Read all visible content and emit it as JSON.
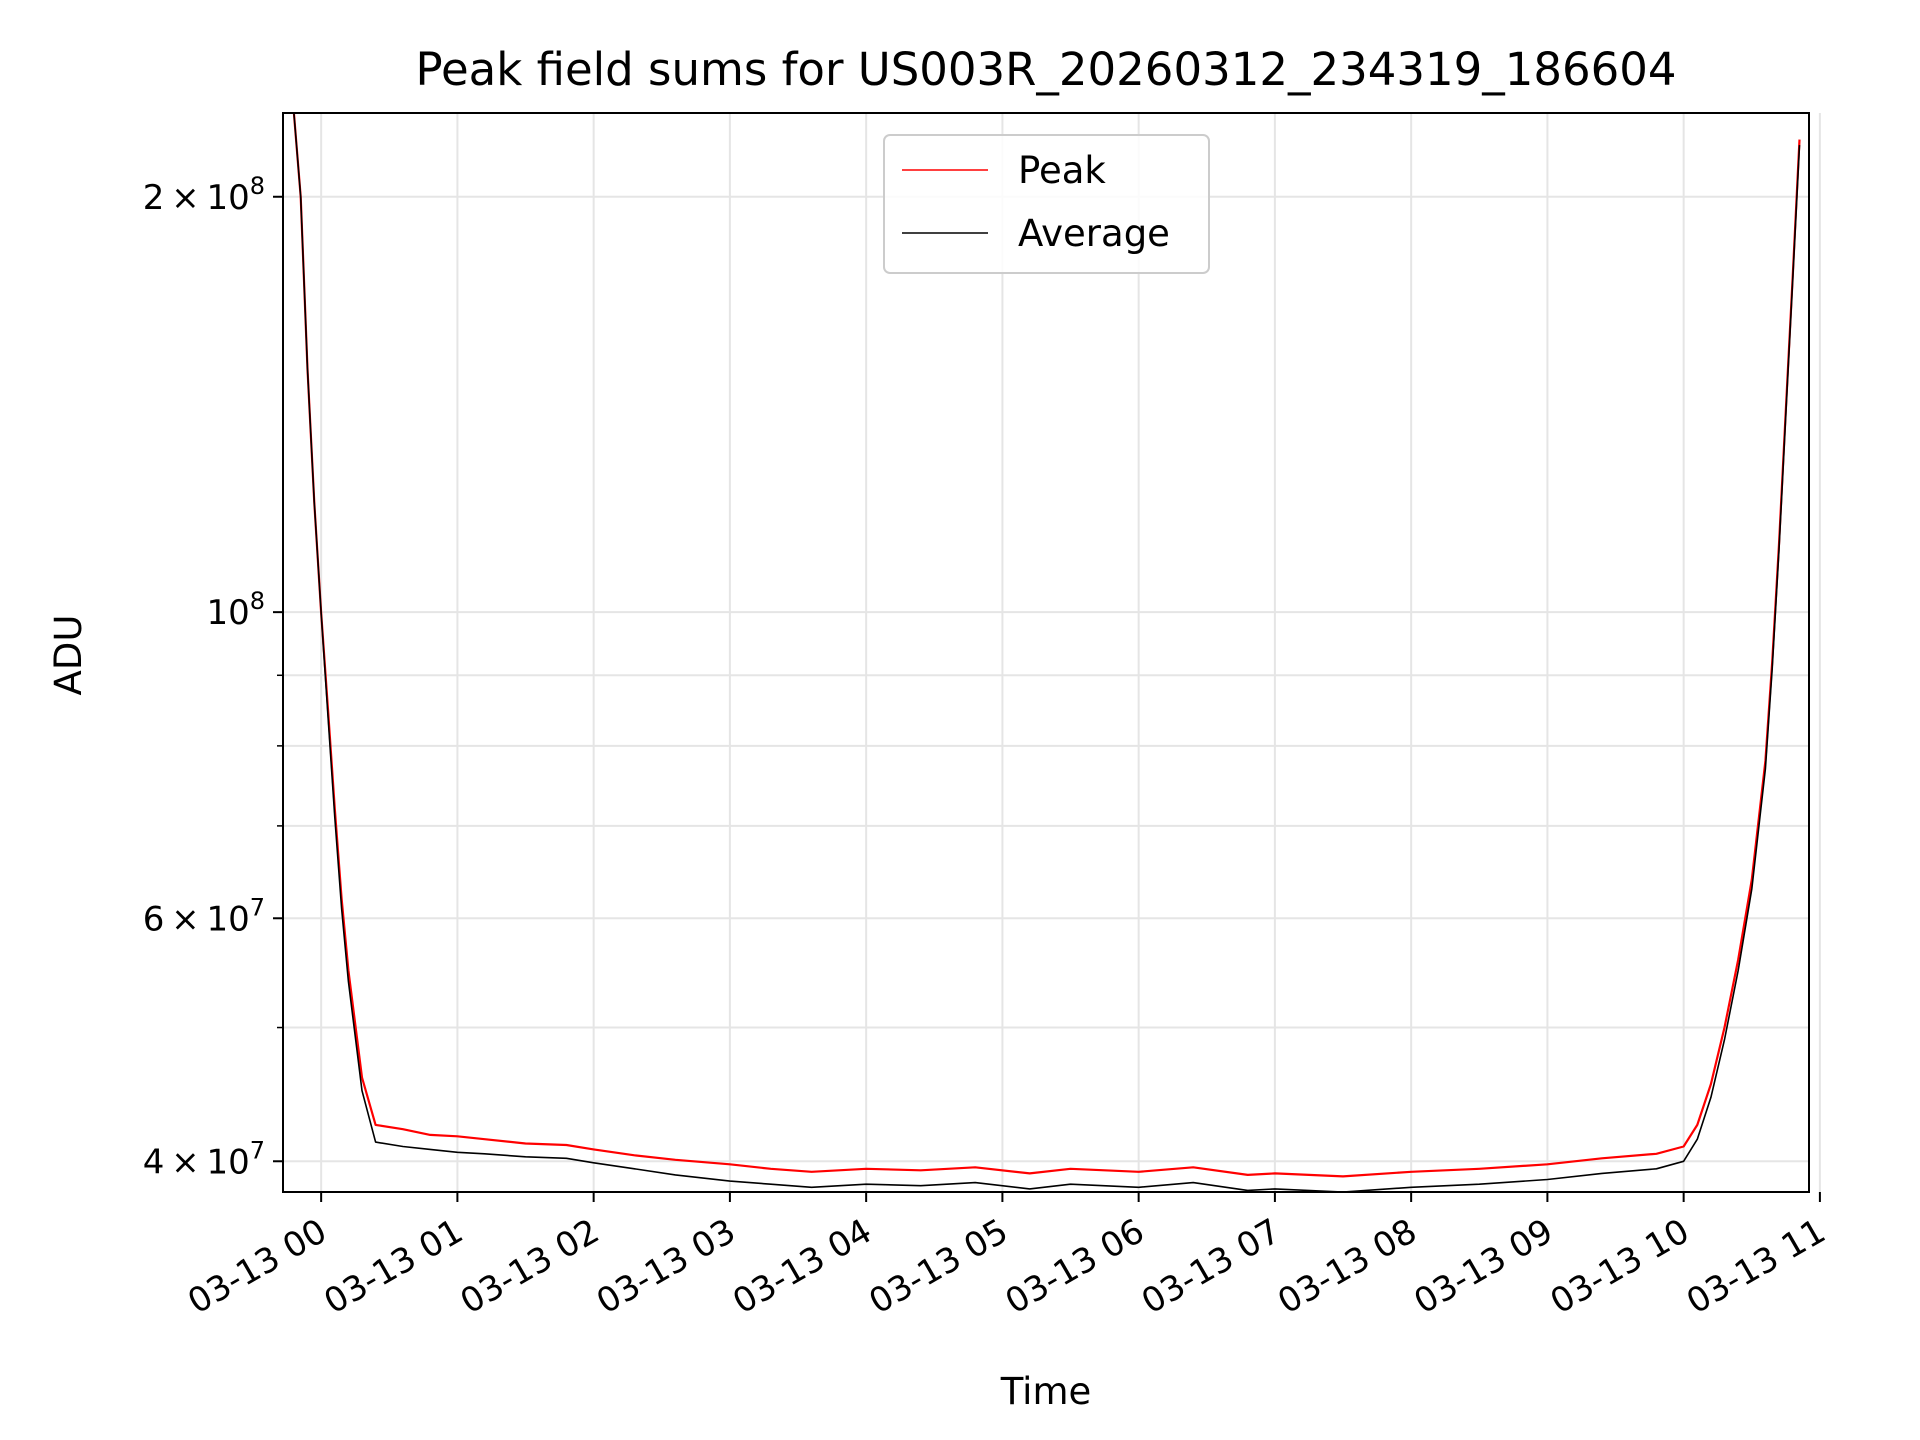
{
  "chart_data": {
    "type": "line",
    "title": "Peak field sums for US003R_20260312_234319_186604",
    "xlabel": "Time",
    "ylabel": "ADU",
    "yscale": "log",
    "ylim": [
      38000000,
      230000000
    ],
    "xlim_hours": [
      -0.28,
      10.92
    ],
    "grid": true,
    "legend_location": "upper center",
    "x_ticks": [
      {
        "hour": 0,
        "label": "03-13 00"
      },
      {
        "hour": 1,
        "label": "03-13 01"
      },
      {
        "hour": 2,
        "label": "03-13 02"
      },
      {
        "hour": 3,
        "label": "03-13 03"
      },
      {
        "hour": 4,
        "label": "03-13 04"
      },
      {
        "hour": 5,
        "label": "03-13 05"
      },
      {
        "hour": 6,
        "label": "03-13 06"
      },
      {
        "hour": 7,
        "label": "03-13 07"
      },
      {
        "hour": 8,
        "label": "03-13 08"
      },
      {
        "hour": 9,
        "label": "03-13 09"
      },
      {
        "hour": 10,
        "label": "03-13 10"
      },
      {
        "hour": 11,
        "label": "03-13 11"
      }
    ],
    "y_major_ticks": [
      {
        "value": 40000000,
        "mant": "4",
        "exp": "7"
      },
      {
        "value": 60000000,
        "mant": "6",
        "exp": "7"
      },
      {
        "value": 100000000,
        "mant": "",
        "exp": "8"
      },
      {
        "value": 200000000,
        "mant": "2",
        "exp": "8"
      }
    ],
    "y_minor_ticks": [
      50000000,
      70000000,
      80000000,
      90000000
    ],
    "series": [
      {
        "name": "Peak",
        "color": "#ff0000",
        "x_hours": [
          -0.2,
          -0.15,
          -0.1,
          -0.05,
          0.0,
          0.05,
          0.1,
          0.15,
          0.2,
          0.3,
          0.4,
          0.6,
          0.8,
          1.0,
          1.2,
          1.5,
          1.8,
          2.0,
          2.3,
          2.6,
          3.0,
          3.3,
          3.6,
          4.0,
          4.4,
          4.8,
          5.2,
          5.5,
          6.0,
          6.4,
          6.8,
          7.0,
          7.5,
          8.0,
          8.5,
          9.0,
          9.4,
          9.8,
          10.0,
          10.1,
          10.2,
          10.3,
          10.4,
          10.5,
          10.6,
          10.65,
          10.7,
          10.75,
          10.8,
          10.85
        ],
        "values": [
          230000000,
          200000000,
          150000000,
          120000000,
          100000000,
          85000000,
          72000000,
          62000000,
          55000000,
          46000000,
          42500000,
          42200000,
          41800000,
          41700000,
          41500000,
          41200000,
          41100000,
          40800000,
          40400000,
          40100000,
          39800000,
          39500000,
          39300000,
          39500000,
          39400000,
          39600000,
          39200000,
          39500000,
          39300000,
          39600000,
          39100000,
          39200000,
          39000000,
          39300000,
          39500000,
          39800000,
          40200000,
          40500000,
          41000000,
          42500000,
          45500000,
          50000000,
          56000000,
          64000000,
          78000000,
          92000000,
          112000000,
          140000000,
          175000000,
          220000000
        ]
      },
      {
        "name": "Average",
        "color": "#000000",
        "x_hours": [
          -0.2,
          -0.15,
          -0.1,
          -0.05,
          0.0,
          0.05,
          0.1,
          0.15,
          0.2,
          0.3,
          0.4,
          0.6,
          0.8,
          1.0,
          1.2,
          1.5,
          1.8,
          2.0,
          2.3,
          2.6,
          3.0,
          3.3,
          3.6,
          4.0,
          4.4,
          4.8,
          5.2,
          5.5,
          6.0,
          6.4,
          6.8,
          7.0,
          7.5,
          8.0,
          8.5,
          9.0,
          9.4,
          9.8,
          10.0,
          10.1,
          10.2,
          10.3,
          10.4,
          10.5,
          10.6,
          10.65,
          10.7,
          10.75,
          10.8,
          10.85
        ],
        "values": [
          230000000,
          200000000,
          150000000,
          120000000,
          100000000,
          84000000,
          71000000,
          61000000,
          54000000,
          45000000,
          41300000,
          41000000,
          40800000,
          40600000,
          40500000,
          40300000,
          40200000,
          39900000,
          39500000,
          39100000,
          38700000,
          38500000,
          38300000,
          38500000,
          38400000,
          38600000,
          38200000,
          38500000,
          38300000,
          38600000,
          38100000,
          38200000,
          38000000,
          38300000,
          38500000,
          38800000,
          39200000,
          39500000,
          40000000,
          41500000,
          44500000,
          49000000,
          55000000,
          63000000,
          77000000,
          91000000,
          111000000,
          139000000,
          174000000,
          218000000
        ]
      }
    ]
  }
}
